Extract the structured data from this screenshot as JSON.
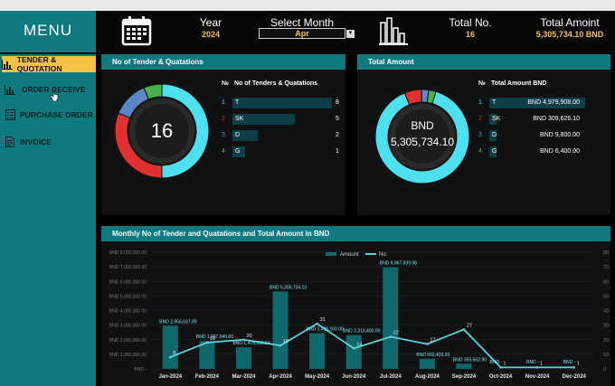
{
  "sidebar": {
    "title": "MENU",
    "items": [
      {
        "label": "TENDER & QUOTATION",
        "icon": "bar-chart-icon",
        "active": true
      },
      {
        "label": "ORDER RECEIVE",
        "icon": "bar-chart-icon",
        "active": false
      },
      {
        "label": "PURCHASE ORDER",
        "icon": "list-icon",
        "active": false
      },
      {
        "label": "INVOICE",
        "icon": "document-icon",
        "active": false
      }
    ]
  },
  "header": {
    "year_label": "Year",
    "year_value": "2024",
    "month_label": "Select Month",
    "month_value": "Apr",
    "total_no_label": "Total No.",
    "total_no_value": "16",
    "total_amount_label": "Total Amoint",
    "total_amount_value": "5,305,734.10 BND"
  },
  "panel_tenders": {
    "title": "No of Tender & Quatations",
    "center_value": "16",
    "col_no": "№",
    "col_label": "No of Tenders & Quatations",
    "rows": [
      {
        "idx": "1",
        "name": "T",
        "value": 8,
        "display": "8",
        "color": "#4fe0f0"
      },
      {
        "idx": "2",
        "name": "SK",
        "value": 5,
        "display": "5",
        "color": "#e03030"
      },
      {
        "idx": "3",
        "name": "D",
        "value": 2,
        "display": "2",
        "color": "#5b86c9"
      },
      {
        "idx": "4",
        "name": "G",
        "value": 1,
        "display": "1",
        "color": "#4ab04a"
      }
    ]
  },
  "panel_amount": {
    "title": "Total Amount",
    "center_currency": "BND",
    "center_value": "5,305,734.10",
    "col_no": "№",
    "col_label": "Total Amount BND",
    "rows": [
      {
        "idx": "1",
        "name": "T",
        "value": 4979908.0,
        "display": "BND 4,979,908.00",
        "color": "#4fe0f0"
      },
      {
        "idx": "2",
        "name": "SK",
        "value": 309626.1,
        "display": "BND 309,626.10",
        "color": "#e03030"
      },
      {
        "idx": "3",
        "name": "D",
        "value": 9800.0,
        "display": "BND 9,800.00",
        "color": "#5b86c9"
      },
      {
        "idx": "4",
        "name": "G",
        "value": 6400.0,
        "display": "BND 6,400.00",
        "color": "#4ab04a"
      }
    ]
  },
  "chart_data": {
    "type": "bar",
    "title": "Monthly No of Tender and Quatations and Total Amount in BND",
    "legend": [
      "Amount",
      "No"
    ],
    "legend_position": "top",
    "categories": [
      "Jan-2024",
      "Feb-2024",
      "Mar-2024",
      "Apr-2024",
      "May-2024",
      "Jun-2024",
      "Jul-2024",
      "Aug-2024",
      "Sep-2024",
      "Oct-2024",
      "Nov-2024",
      "Dec-2024"
    ],
    "y_left_ticks": [
      "BND 8,000,000.00",
      "BND 7,000,000.00",
      "BND 6,000,000.00",
      "BND 5,000,000.00",
      "BND 4,000,000.00",
      "BND 3,000,000.00",
      "BND 2,000,000.00",
      "BND 1,000,000.00",
      "BND -"
    ],
    "y_right_ticks": [
      "80",
      "70",
      "60",
      "50",
      "40",
      "30",
      "20",
      "10",
      "0"
    ],
    "ylim_left": [
      0,
      8000000
    ],
    "ylim_right": [
      0,
      80
    ],
    "series": [
      {
        "name": "Amount",
        "kind": "bar",
        "color": "#10686c",
        "values": [
          2956637,
          1907640,
          1475953.54,
          5305734.1,
          2439160,
          2313400,
          6967939.98,
          692403,
          355562.9,
          0,
          0,
          0
        ],
        "labels": [
          "BND 2,956,637.00",
          "BND 1,907,640.00",
          "BND 1,475,953.54",
          "BND 5,305,734.10",
          "BND 2,439,160.00",
          "BND 2,313,400.00",
          "BND 6,967,939.98",
          "BND 692,403.00",
          "BND 355,562.90",
          "BND -",
          "BND -",
          "BND -"
        ]
      },
      {
        "name": "No",
        "kind": "line",
        "color": "#5fd3dc",
        "values": [
          8,
          18,
          20,
          16,
          31,
          14,
          22,
          17,
          27,
          1,
          1,
          1
        ],
        "labels": [
          "8",
          "18",
          "20",
          "16",
          "31",
          "14",
          "22",
          "17",
          "27",
          "1",
          "1",
          "1"
        ]
      }
    ]
  }
}
